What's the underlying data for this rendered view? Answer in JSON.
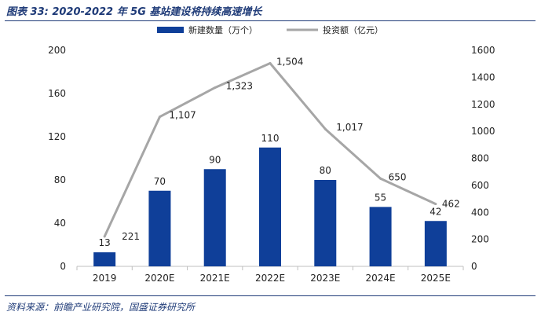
{
  "figure": {
    "title": "图表 33:  2020-2022 年 5G 基站建设将持续高速增长",
    "source": "资料来源：前瞻产业研究院，国盛证券研究所"
  },
  "chart_data": {
    "type": "bar+line",
    "categories": [
      "2019",
      "2020E",
      "2021E",
      "2022E",
      "2023E",
      "2024E",
      "2025E"
    ],
    "series": [
      {
        "name": "新建数量（万个）",
        "type": "bar",
        "axis": "left",
        "color": "#0f3f99",
        "values": [
          13,
          70,
          90,
          110,
          80,
          55,
          42
        ],
        "labels": [
          "13",
          "70",
          "90",
          "110",
          "80",
          "55",
          "42"
        ]
      },
      {
        "name": "投资额（亿元）",
        "type": "line",
        "axis": "right",
        "color": "#a6a6a6",
        "values": [
          221,
          1107,
          1323,
          1504,
          1017,
          650,
          462
        ],
        "labels": [
          "221",
          "1,107",
          "1,323",
          "1,504",
          "1,017",
          "650",
          "462"
        ]
      }
    ],
    "y_left": {
      "min": 0,
      "max": 200,
      "ticks": [
        0,
        40,
        80,
        120,
        160,
        200
      ]
    },
    "y_right": {
      "min": 0,
      "max": 1600,
      "ticks": [
        0,
        200,
        400,
        600,
        800,
        1000,
        1200,
        1400,
        1600
      ]
    },
    "legend_position": "top"
  }
}
